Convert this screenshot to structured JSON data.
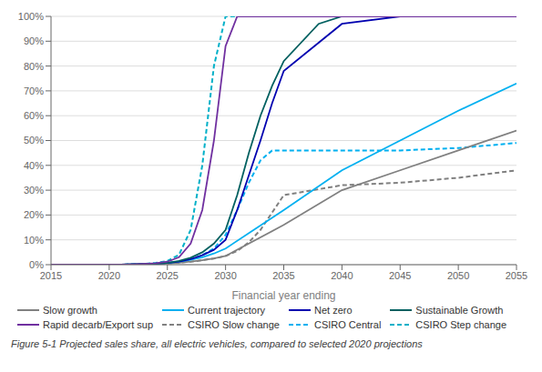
{
  "chart_data": {
    "type": "line",
    "title": "",
    "xlabel": "Financial year ending",
    "caption": "Figure 5-1 Projected sales share, all electric vehicles, compared to selected 2020 projections",
    "xlim": [
      2015,
      2055
    ],
    "ylim": [
      0,
      1.0
    ],
    "xticks": [
      2015,
      2020,
      2025,
      2030,
      2035,
      2040,
      2045,
      2050,
      2055
    ],
    "yticks": [
      {
        "value": 0,
        "label": "0%"
      },
      {
        "value": 0.1,
        "label": "10%"
      },
      {
        "value": 0.2,
        "label": "20%"
      },
      {
        "value": 0.3,
        "label": "30%"
      },
      {
        "value": 0.4,
        "label": "40%"
      },
      {
        "value": 0.5,
        "label": "50%"
      },
      {
        "value": 0.6,
        "label": "60%"
      },
      {
        "value": 0.7,
        "label": "70%"
      },
      {
        "value": 0.8,
        "label": "80%"
      },
      {
        "value": 0.9,
        "label": "90%"
      },
      {
        "value": 1.0,
        "label": "100%"
      }
    ],
    "grid": true,
    "legend": "bottom",
    "series": [
      {
        "name": "Slow growth",
        "color": "#808080",
        "line_style": "solid",
        "x": [
          2015,
          2021,
          2022,
          2023,
          2024,
          2025,
          2026,
          2027,
          2028,
          2029,
          2030,
          2035,
          2040,
          2045,
          2050,
          2055
        ],
        "values": [
          0.0,
          0.0,
          0.001,
          0.002,
          0.003,
          0.005,
          0.008,
          0.012,
          0.018,
          0.025,
          0.035,
          0.16,
          0.3,
          0.38,
          0.46,
          0.54
        ]
      },
      {
        "name": "Current trajectory",
        "color": "#00b0f0",
        "line_style": "solid",
        "x": [
          2015,
          2021,
          2022,
          2023,
          2024,
          2025,
          2026,
          2027,
          2028,
          2029,
          2030,
          2035,
          2040,
          2045,
          2050,
          2055
        ],
        "values": [
          0.0,
          0.0,
          0.001,
          0.002,
          0.004,
          0.007,
          0.012,
          0.02,
          0.03,
          0.045,
          0.065,
          0.22,
          0.38,
          0.5,
          0.62,
          0.73
        ]
      },
      {
        "name": "Net zero",
        "color": "#0000b0",
        "line_style": "solid",
        "x": [
          2015,
          2021,
          2022,
          2023,
          2024,
          2025,
          2026,
          2027,
          2028,
          2029,
          2030,
          2031,
          2032,
          2033,
          2034,
          2035,
          2040,
          2045,
          2048,
          2050,
          2055
        ],
        "values": [
          0.0,
          0.0,
          0.001,
          0.002,
          0.004,
          0.007,
          0.012,
          0.022,
          0.038,
          0.06,
          0.1,
          0.22,
          0.36,
          0.5,
          0.65,
          0.78,
          0.97,
          1.0,
          1.0,
          1.0,
          1.0
        ]
      },
      {
        "name": "Sustainable Growth",
        "color": "#006060",
        "line_style": "solid",
        "x": [
          2015,
          2021,
          2022,
          2023,
          2024,
          2025,
          2026,
          2027,
          2028,
          2029,
          2030,
          2031,
          2032,
          2033,
          2034,
          2035,
          2038,
          2040,
          2042,
          2055
        ],
        "values": [
          0.0,
          0.0,
          0.001,
          0.002,
          0.004,
          0.007,
          0.015,
          0.028,
          0.05,
          0.085,
          0.14,
          0.28,
          0.45,
          0.6,
          0.72,
          0.82,
          0.97,
          1.0,
          1.0,
          1.0
        ]
      },
      {
        "name": "Rapid decarb/Export sup",
        "color": "#7030a0",
        "line_style": "solid",
        "x": [
          2015,
          2021,
          2022,
          2023,
          2024,
          2025,
          2026,
          2027,
          2028,
          2029,
          2030,
          2031,
          2055
        ],
        "values": [
          0.0,
          0.0,
          0.001,
          0.003,
          0.006,
          0.012,
          0.03,
          0.085,
          0.22,
          0.5,
          0.88,
          1.0,
          1.0
        ]
      },
      {
        "name": "CSIRO Slow change",
        "color": "#808080",
        "line_style": "dashed",
        "x": [
          2015,
          2021,
          2022,
          2023,
          2024,
          2025,
          2026,
          2027,
          2028,
          2029,
          2030,
          2031,
          2032,
          2033,
          2034,
          2035,
          2040,
          2045,
          2050,
          2055
        ],
        "values": [
          0.0,
          0.0,
          0.001,
          0.002,
          0.003,
          0.005,
          0.008,
          0.012,
          0.018,
          0.025,
          0.035,
          0.055,
          0.09,
          0.14,
          0.21,
          0.28,
          0.32,
          0.33,
          0.35,
          0.38
        ]
      },
      {
        "name": "CSIRO Central",
        "color": "#00b0f0",
        "line_style": "dashed",
        "x": [
          2015,
          2021,
          2022,
          2023,
          2024,
          2025,
          2026,
          2027,
          2028,
          2029,
          2030,
          2031,
          2032,
          2033,
          2034,
          2035,
          2036,
          2040,
          2045,
          2050,
          2055
        ],
        "values": [
          0.0,
          0.0,
          0.001,
          0.002,
          0.004,
          0.007,
          0.012,
          0.022,
          0.038,
          0.065,
          0.12,
          0.22,
          0.33,
          0.42,
          0.46,
          0.46,
          0.46,
          0.46,
          0.46,
          0.47,
          0.49
        ]
      },
      {
        "name": "CSIRO Step change",
        "color": "#00b0c8",
        "line_style": "dashed",
        "x": [
          2015,
          2021,
          2022,
          2023,
          2024,
          2025,
          2026,
          2027,
          2028,
          2029,
          2030,
          2031,
          2055
        ],
        "values": [
          0.0,
          0.0,
          0.001,
          0.003,
          0.007,
          0.015,
          0.04,
          0.14,
          0.4,
          0.8,
          1.0,
          1.0,
          1.0
        ]
      }
    ]
  }
}
